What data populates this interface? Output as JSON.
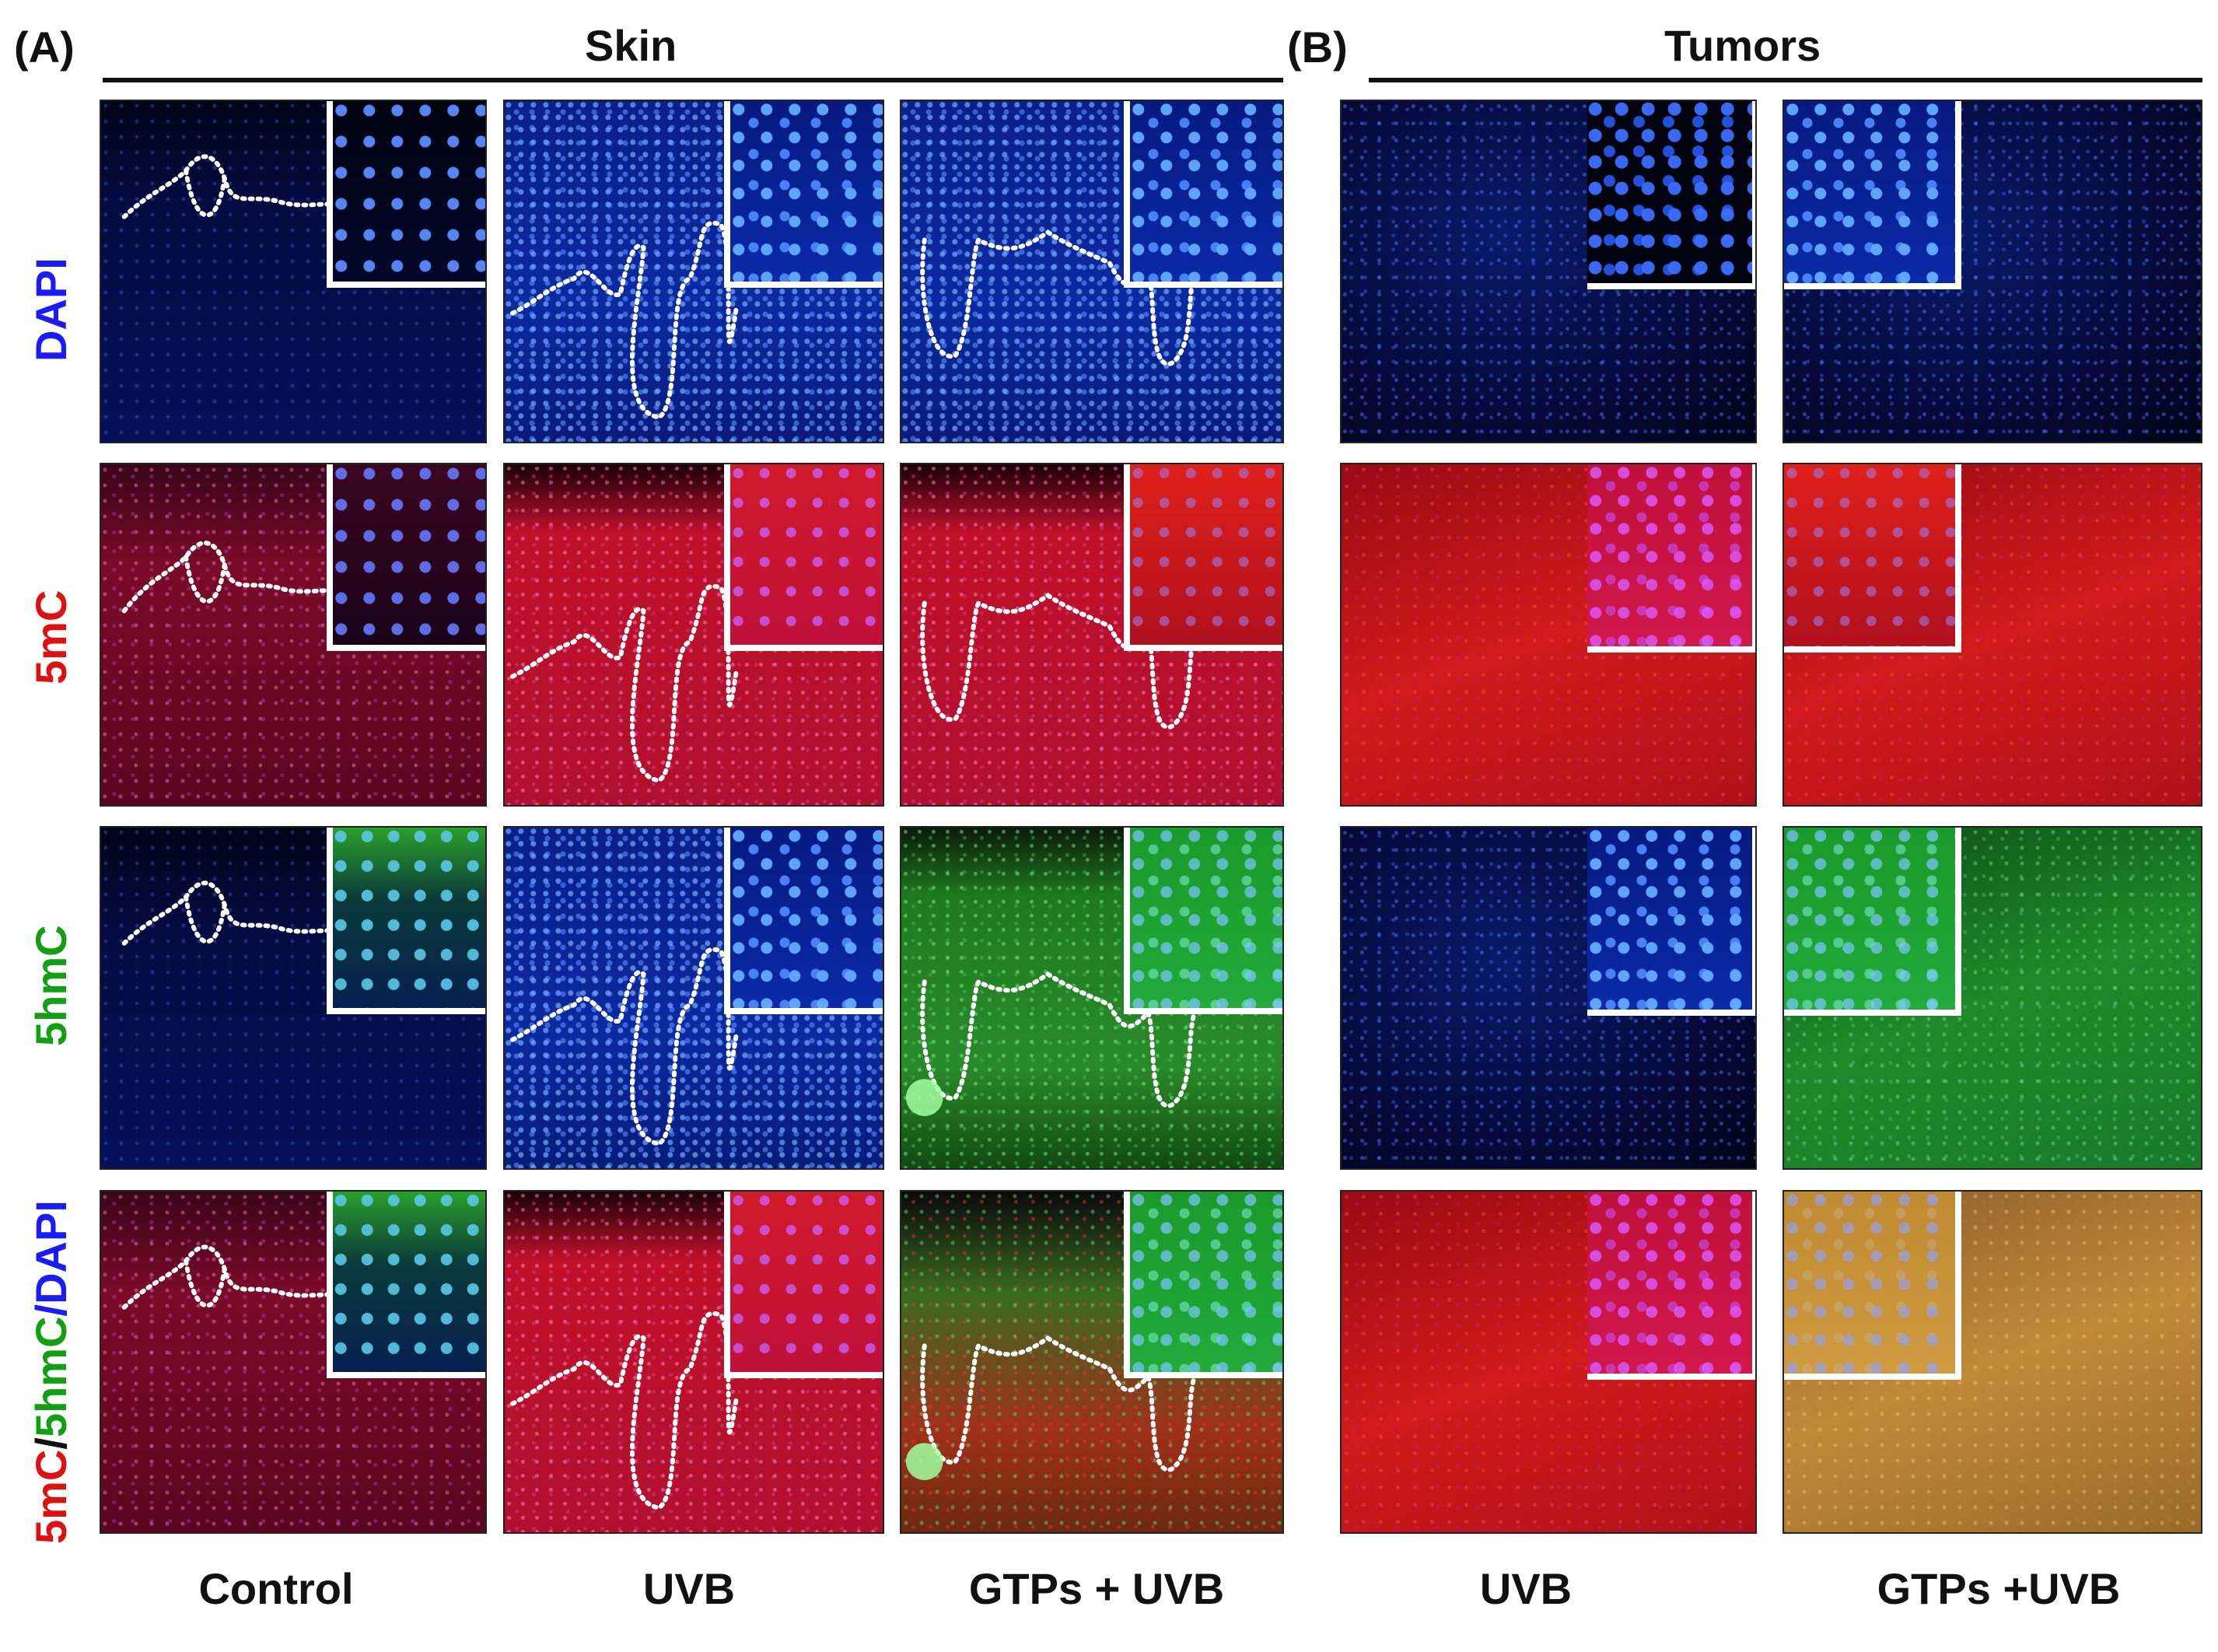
{
  "panels": {
    "a": {
      "letter": "(A)",
      "title": "Skin",
      "columns": [
        "Control",
        "UVB",
        "GTPs + UVB"
      ]
    },
    "b": {
      "letter": "(B)",
      "title": "Tumors",
      "columns": [
        "UVB",
        "GTPs +UVB"
      ]
    }
  },
  "rows": [
    {
      "label": "DAPI",
      "color": "#1a1aff"
    },
    {
      "label": "5mC",
      "color": "#e01010"
    },
    {
      "label": "5hmC",
      "color": "#11a011"
    },
    {
      "label_parts": [
        "5mC",
        "/",
        "5hmC",
        "/DAPI"
      ],
      "colors": [
        "#e01010",
        "#111111",
        "#11a011",
        "#1a1aff"
      ]
    }
  ],
  "colors": {
    "dapi": "#1a1aff",
    "five_mc": "#e01010",
    "five_hmc": "#11a011",
    "text": "#111111",
    "rule": "#111111"
  }
}
